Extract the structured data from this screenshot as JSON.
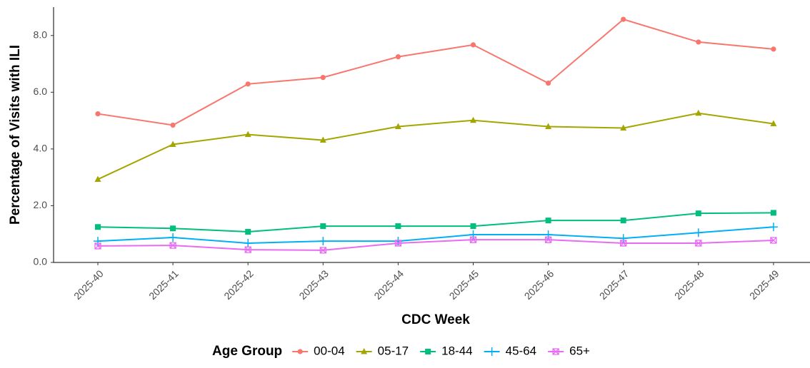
{
  "chart_data": {
    "type": "line",
    "xlabel": "CDC Week",
    "ylabel": "Percentage of Visits with ILI",
    "legend_title": "Age Group",
    "legend_position": "bottom",
    "grid": false,
    "categories": [
      "2025-40",
      "2025-41",
      "2025-42",
      "2025-43",
      "2025-44",
      "2025-45",
      "2025-46",
      "2025-47",
      "2025-48",
      "2025-49"
    ],
    "ylim": [
      0,
      9
    ],
    "yticks": [
      {
        "value": 0,
        "label": "0.0"
      },
      {
        "value": 2,
        "label": "2.0"
      },
      {
        "value": 4,
        "label": "4.0"
      },
      {
        "value": 6,
        "label": "6.0"
      },
      {
        "value": 8,
        "label": "8.0"
      }
    ],
    "series": [
      {
        "name": "00-04",
        "color": "#F8766D",
        "marker": "circle",
        "values": [
          5.24,
          4.84,
          6.29,
          6.52,
          7.25,
          7.67,
          6.32,
          8.57,
          7.77,
          7.52
        ]
      },
      {
        "name": "05-17",
        "color": "#A3A500",
        "marker": "triangle",
        "values": [
          2.93,
          4.16,
          4.51,
          4.31,
          4.79,
          5.01,
          4.79,
          4.74,
          5.26,
          4.89
        ]
      },
      {
        "name": "18-44",
        "color": "#00BF7D",
        "marker": "square",
        "values": [
          1.25,
          1.2,
          1.08,
          1.28,
          1.28,
          1.28,
          1.48,
          1.48,
          1.73,
          1.75
        ]
      },
      {
        "name": "45-64",
        "color": "#00B0F6",
        "marker": "plus",
        "values": [
          0.75,
          0.88,
          0.68,
          0.75,
          0.75,
          0.98,
          0.98,
          0.85,
          1.05,
          1.25
        ]
      },
      {
        "name": "65+",
        "color": "#E76BF3",
        "marker": "square-cross",
        "values": [
          0.58,
          0.6,
          0.45,
          0.43,
          0.68,
          0.8,
          0.8,
          0.68,
          0.68,
          0.78
        ]
      }
    ]
  }
}
